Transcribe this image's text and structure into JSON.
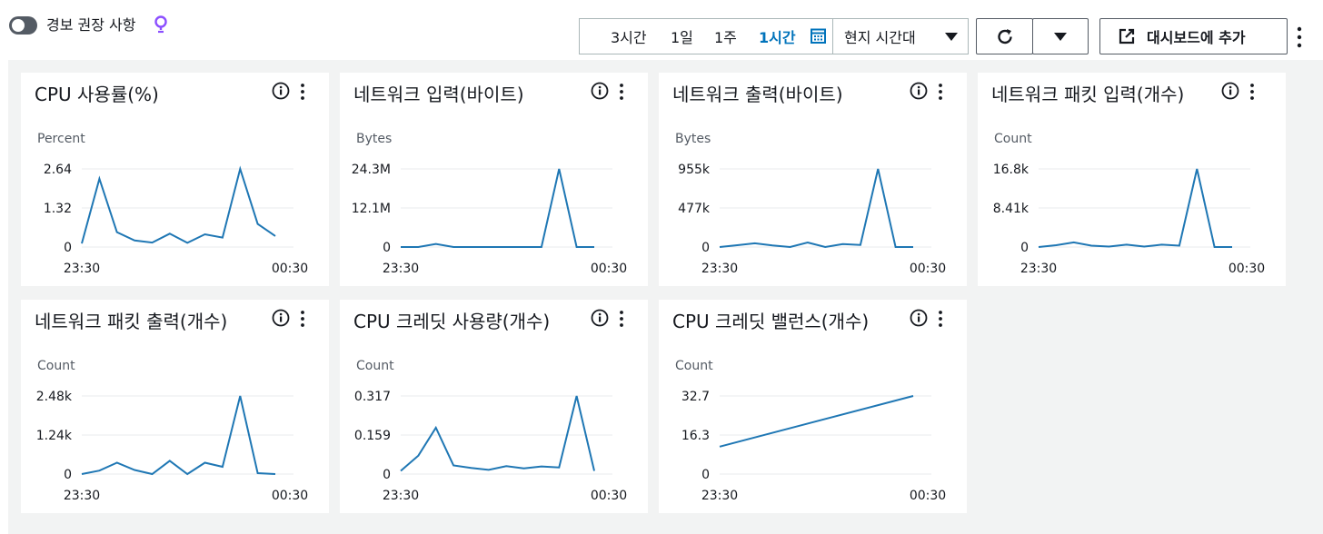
{
  "header": {
    "alarm_toggle_label": "경보 권장 사항",
    "time_ranges": [
      "3시간",
      "1일",
      "1주",
      "1시간"
    ],
    "active_time_range": "1시간",
    "timezone_label": "현지 시간대",
    "add_to_dashboard_label": "대시보드에 추가"
  },
  "colors": {
    "line": "#1f77b4",
    "accent": "#0073bb",
    "bulb": "#8c4fff"
  },
  "cards": [
    {
      "title": "CPU 사용률(%)",
      "unit": "Percent",
      "yticks": [
        "2.64",
        "1.32",
        "0"
      ],
      "xticks": [
        "23:30",
        "00:30"
      ]
    },
    {
      "title": "네트워크 입력(바이트)",
      "unit": "Bytes",
      "yticks": [
        "24.3M",
        "12.1M",
        "0"
      ],
      "xticks": [
        "23:30",
        "00:30"
      ]
    },
    {
      "title": "네트워크 출력(바이트)",
      "unit": "Bytes",
      "yticks": [
        "955k",
        "477k",
        "0"
      ],
      "xticks": [
        "23:30",
        "00:30"
      ]
    },
    {
      "title": "네트워크 패킷 입력(개수)",
      "unit": "Count",
      "yticks": [
        "16.8k",
        "8.41k",
        "0"
      ],
      "xticks": [
        "23:30",
        "00:30"
      ]
    },
    {
      "title": "네트워크 패킷 출력(개수)",
      "unit": "Count",
      "yticks": [
        "2.48k",
        "1.24k",
        "0"
      ],
      "xticks": [
        "23:30",
        "00:30"
      ]
    },
    {
      "title": "CPU 크레딧 사용량(개수)",
      "unit": "Count",
      "yticks": [
        "0.317",
        "0.159",
        "0"
      ],
      "xticks": [
        "23:30",
        "00:30"
      ]
    },
    {
      "title": "CPU 크레딧 밸런스(개수)",
      "unit": "Count",
      "yticks": [
        "32.7",
        "16.3",
        "0"
      ],
      "xticks": [
        "23:30",
        "00:30"
      ]
    }
  ],
  "chart_data": [
    {
      "type": "line",
      "title": "CPU 사용률(%)",
      "ylabel": "Percent",
      "ylim": [
        0,
        2.64
      ],
      "x": [
        0,
        1,
        2,
        3,
        4,
        5,
        6,
        7,
        8,
        9,
        10,
        11
      ],
      "values": [
        0.12,
        2.31,
        0.5,
        0.22,
        0.15,
        0.45,
        0.14,
        0.43,
        0.32,
        2.64,
        0.78,
        0.37
      ]
    },
    {
      "type": "line",
      "title": "네트워크 입력(바이트)",
      "ylabel": "Bytes",
      "ylim": [
        0,
        24300000
      ],
      "x": [
        0,
        1,
        2,
        3,
        4,
        5,
        6,
        7,
        8,
        9,
        10,
        11
      ],
      "values": [
        0,
        0,
        950000,
        0,
        0,
        0,
        0,
        0,
        0,
        24300000,
        0,
        0
      ]
    },
    {
      "type": "line",
      "title": "네트워크 출력(바이트)",
      "ylabel": "Bytes",
      "ylim": [
        0,
        955000
      ],
      "x": [
        0,
        1,
        2,
        3,
        4,
        5,
        6,
        7,
        8,
        9,
        10,
        11
      ],
      "values": [
        0,
        22000,
        45000,
        20000,
        0,
        55000,
        0,
        35000,
        25000,
        955000,
        0,
        0
      ]
    },
    {
      "type": "line",
      "title": "네트워크 패킷 입력(개수)",
      "ylabel": "Count",
      "ylim": [
        0,
        16800
      ],
      "x": [
        0,
        1,
        2,
        3,
        4,
        5,
        6,
        7,
        8,
        9,
        10,
        11
      ],
      "values": [
        0,
        400,
        1000,
        300,
        100,
        500,
        100,
        500,
        300,
        16800,
        0,
        0
      ]
    },
    {
      "type": "line",
      "title": "네트워크 패킷 출력(개수)",
      "ylabel": "Count",
      "ylim": [
        0,
        2480
      ],
      "x": [
        0,
        1,
        2,
        3,
        4,
        5,
        6,
        7,
        8,
        9,
        10,
        11
      ],
      "values": [
        0,
        110,
        360,
        130,
        0,
        420,
        0,
        360,
        230,
        2480,
        30,
        0
      ]
    },
    {
      "type": "line",
      "title": "CPU 크레딧 사용량(개수)",
      "ylabel": "Count",
      "ylim": [
        0,
        0.317
      ],
      "x": [
        0,
        1,
        2,
        3,
        4,
        5,
        6,
        7,
        8,
        9,
        10,
        11
      ],
      "values": [
        0.013,
        0.075,
        0.188,
        0.035,
        0.025,
        0.017,
        0.032,
        0.023,
        0.031,
        0.027,
        0.317,
        0.013
      ]
    },
    {
      "type": "line",
      "title": "CPU 크레딧 밸런스(개수)",
      "ylabel": "Count",
      "ylim": [
        0,
        32.7
      ],
      "x": [
        0,
        11
      ],
      "values": [
        11.5,
        32.7
      ]
    }
  ]
}
